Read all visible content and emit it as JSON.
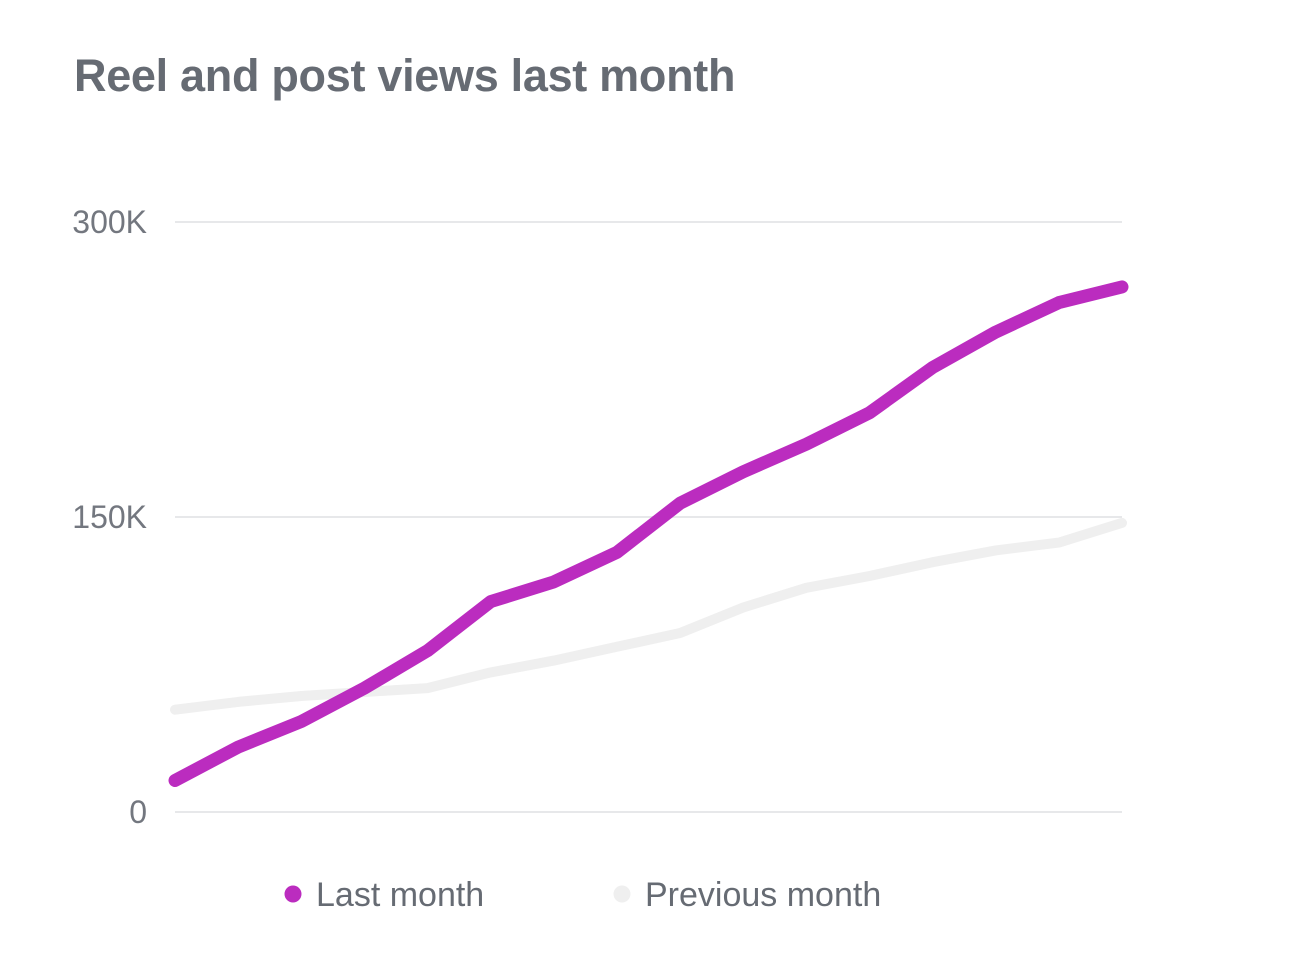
{
  "chart_data": {
    "type": "line",
    "title": "Reel and post views last month",
    "xlabel": "",
    "ylabel": "",
    "ylim": [
      0,
      300000
    ],
    "yticks": [
      {
        "value": 0,
        "label": "0"
      },
      {
        "value": 150000,
        "label": "150K"
      },
      {
        "value": 300000,
        "label": "300K"
      }
    ],
    "grid": true,
    "legend_position": "bottom",
    "x": [
      1,
      2,
      3,
      4,
      5,
      6,
      7,
      8,
      9,
      10,
      11,
      12,
      13,
      14,
      15,
      16
    ],
    "series": [
      {
        "name": "Last month",
        "color": "#bb2cbf",
        "values": [
          16000,
          33000,
          46000,
          63000,
          82000,
          107000,
          117000,
          132000,
          157000,
          173000,
          187000,
          203000,
          226000,
          244000,
          259000,
          267000
        ]
      },
      {
        "name": "Previous month",
        "color": "#efefef",
        "values": [
          52000,
          56000,
          59000,
          61000,
          63000,
          71000,
          77000,
          84000,
          91000,
          104000,
          114000,
          120000,
          127000,
          133000,
          137000,
          147000
        ]
      }
    ]
  },
  "colors": {
    "grid": "#e7e8ea",
    "tick_text": "#73777f",
    "title_text": "#666b73"
  }
}
